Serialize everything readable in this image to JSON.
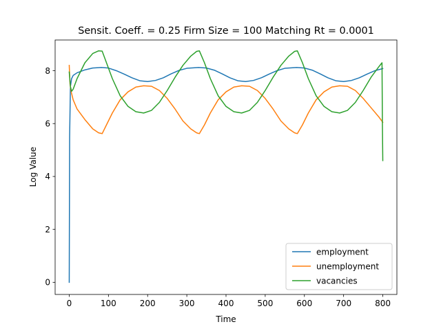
{
  "chart_data": {
    "type": "line",
    "title": "Sensit. Coeff. = 0.25 Firm Size = 100 Matching Rt = 0.0001",
    "xlabel": "Time",
    "ylabel": "Log Value",
    "xlim": [
      -36,
      836
    ],
    "ylim": [
      -0.46,
      9.16
    ],
    "xticks": [
      0,
      100,
      200,
      300,
      400,
      500,
      600,
      700,
      800
    ],
    "yticks": [
      0,
      2,
      4,
      6,
      8
    ],
    "xtick_labels": [
      "0",
      "100",
      "200",
      "300",
      "400",
      "500",
      "600",
      "700",
      "800"
    ],
    "ytick_labels": [
      "0",
      "2",
      "4",
      "6",
      "8"
    ],
    "grid": false,
    "legend_position": "lower-right",
    "series": [
      {
        "name": "employment",
        "color": "#1f77b4",
        "points": [
          [
            0,
            0.0
          ],
          [
            1,
            5.5
          ],
          [
            3,
            7.4
          ],
          [
            6,
            7.7
          ],
          [
            10,
            7.82
          ],
          [
            20,
            7.92
          ],
          [
            40,
            8.03
          ],
          [
            60,
            8.1
          ],
          [
            82,
            8.12
          ],
          [
            100,
            8.1
          ],
          [
            120,
            8.0
          ],
          [
            140,
            7.87
          ],
          [
            160,
            7.73
          ],
          [
            180,
            7.62
          ],
          [
            200,
            7.59
          ],
          [
            220,
            7.63
          ],
          [
            240,
            7.73
          ],
          [
            260,
            7.88
          ],
          [
            280,
            8.01
          ],
          [
            300,
            8.09
          ],
          [
            330,
            8.12
          ],
          [
            350,
            8.1
          ],
          [
            370,
            8.02
          ],
          [
            390,
            7.88
          ],
          [
            410,
            7.73
          ],
          [
            430,
            7.62
          ],
          [
            450,
            7.59
          ],
          [
            470,
            7.63
          ],
          [
            490,
            7.73
          ],
          [
            510,
            7.87
          ],
          [
            530,
            8.0
          ],
          [
            550,
            8.09
          ],
          [
            580,
            8.12
          ],
          [
            600,
            8.1
          ],
          [
            620,
            8.02
          ],
          [
            640,
            7.88
          ],
          [
            660,
            7.73
          ],
          [
            680,
            7.62
          ],
          [
            700,
            7.59
          ],
          [
            720,
            7.63
          ],
          [
            740,
            7.73
          ],
          [
            760,
            7.87
          ],
          [
            780,
            8.0
          ],
          [
            800,
            8.08
          ]
        ]
      },
      {
        "name": "unemployment",
        "color": "#ff7f0e",
        "points": [
          [
            0,
            8.2
          ],
          [
            2,
            7.5
          ],
          [
            5,
            7.2
          ],
          [
            10,
            6.9
          ],
          [
            20,
            6.55
          ],
          [
            40,
            6.15
          ],
          [
            60,
            5.8
          ],
          [
            75,
            5.65
          ],
          [
            84,
            5.62
          ],
          [
            95,
            5.95
          ],
          [
            110,
            6.4
          ],
          [
            130,
            6.9
          ],
          [
            150,
            7.2
          ],
          [
            170,
            7.38
          ],
          [
            190,
            7.43
          ],
          [
            210,
            7.41
          ],
          [
            230,
            7.25
          ],
          [
            250,
            6.95
          ],
          [
            270,
            6.55
          ],
          [
            290,
            6.1
          ],
          [
            310,
            5.8
          ],
          [
            325,
            5.65
          ],
          [
            332,
            5.62
          ],
          [
            345,
            5.95
          ],
          [
            360,
            6.4
          ],
          [
            380,
            6.9
          ],
          [
            400,
            7.2
          ],
          [
            420,
            7.38
          ],
          [
            440,
            7.43
          ],
          [
            460,
            7.41
          ],
          [
            480,
            7.25
          ],
          [
            500,
            6.95
          ],
          [
            520,
            6.55
          ],
          [
            540,
            6.1
          ],
          [
            560,
            5.8
          ],
          [
            575,
            5.65
          ],
          [
            582,
            5.62
          ],
          [
            595,
            5.95
          ],
          [
            610,
            6.4
          ],
          [
            630,
            6.9
          ],
          [
            650,
            7.2
          ],
          [
            670,
            7.38
          ],
          [
            690,
            7.43
          ],
          [
            710,
            7.41
          ],
          [
            730,
            7.25
          ],
          [
            750,
            6.95
          ],
          [
            770,
            6.6
          ],
          [
            790,
            6.25
          ],
          [
            800,
            6.05
          ]
        ]
      },
      {
        "name": "vacancies",
        "color": "#2ca02c",
        "points": [
          [
            0,
            7.95
          ],
          [
            3,
            7.4
          ],
          [
            6,
            7.22
          ],
          [
            10,
            7.3
          ],
          [
            20,
            7.7
          ],
          [
            40,
            8.3
          ],
          [
            60,
            8.65
          ],
          [
            75,
            8.75
          ],
          [
            84,
            8.74
          ],
          [
            95,
            8.3
          ],
          [
            110,
            7.7
          ],
          [
            130,
            7.05
          ],
          [
            150,
            6.65
          ],
          [
            170,
            6.45
          ],
          [
            190,
            6.4
          ],
          [
            210,
            6.5
          ],
          [
            230,
            6.8
          ],
          [
            250,
            7.25
          ],
          [
            270,
            7.75
          ],
          [
            290,
            8.2
          ],
          [
            310,
            8.55
          ],
          [
            325,
            8.73
          ],
          [
            332,
            8.75
          ],
          [
            345,
            8.3
          ],
          [
            360,
            7.7
          ],
          [
            380,
            7.05
          ],
          [
            400,
            6.65
          ],
          [
            420,
            6.45
          ],
          [
            440,
            6.4
          ],
          [
            460,
            6.5
          ],
          [
            480,
            6.8
          ],
          [
            500,
            7.25
          ],
          [
            520,
            7.75
          ],
          [
            540,
            8.2
          ],
          [
            560,
            8.55
          ],
          [
            575,
            8.73
          ],
          [
            582,
            8.75
          ],
          [
            595,
            8.3
          ],
          [
            610,
            7.7
          ],
          [
            630,
            7.05
          ],
          [
            650,
            6.65
          ],
          [
            670,
            6.45
          ],
          [
            690,
            6.4
          ],
          [
            710,
            6.5
          ],
          [
            730,
            6.8
          ],
          [
            750,
            7.25
          ],
          [
            770,
            7.75
          ],
          [
            790,
            8.15
          ],
          [
            798,
            8.3
          ],
          [
            799,
            6.0
          ],
          [
            800,
            4.6
          ]
        ]
      }
    ]
  }
}
